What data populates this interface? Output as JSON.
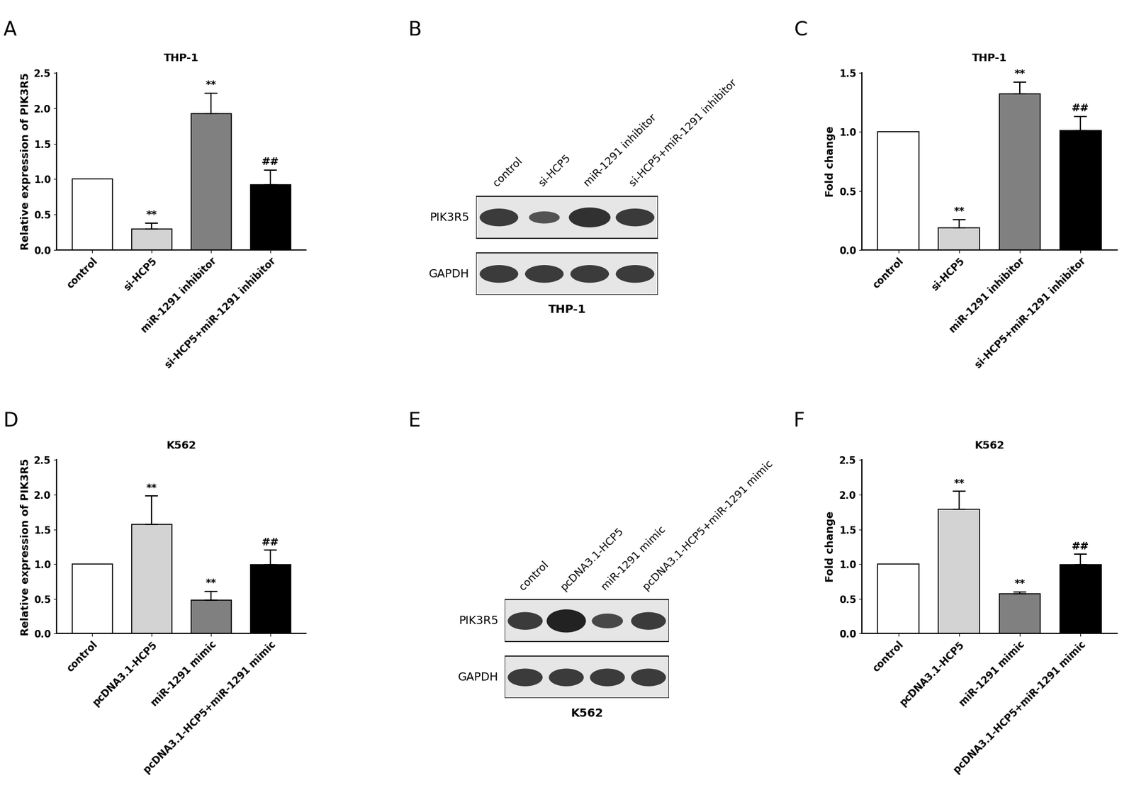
{
  "chart_data": [
    {
      "panel": "A",
      "type": "bar",
      "title": "THP-1",
      "y_label": "Relative expression of PIK3R5",
      "categories": [
        "control",
        "si-HCP5",
        "miR-1291 inhibitor",
        "si-HCP5+miR-1291 inhibitor"
      ],
      "values": [
        1.0,
        0.3,
        1.92,
        0.92
      ],
      "errors": [
        0.0,
        0.08,
        0.29,
        0.21
      ],
      "significance": [
        null,
        "**",
        "**",
        "##"
      ],
      "colors": [
        "#ffffff",
        "#d3d3d3",
        "#808080",
        "#000000"
      ],
      "ylim": [
        0.0,
        2.5
      ],
      "yticks": [
        0.0,
        0.5,
        1.0,
        1.5,
        2.0,
        2.5
      ],
      "grid": false
    },
    {
      "panel": "B",
      "type": "western_blot",
      "caption": "THP-1",
      "lanes": [
        "control",
        "si-HCP5",
        "miR-1291 inhibitor",
        "si-HCP5+miR-1291 inhibitor"
      ],
      "rows": [
        "PIK3R5",
        "GAPDH"
      ]
    },
    {
      "panel": "C",
      "type": "bar",
      "title": "THP-1",
      "y_label": "Fold change",
      "categories": [
        "control",
        "si-HCP5",
        "miR-1291 inhibitor",
        "si-HCP5+miR-1291 inhibitor"
      ],
      "values": [
        1.0,
        0.19,
        1.32,
        1.01
      ],
      "errors": [
        0.0,
        0.07,
        0.1,
        0.12
      ],
      "significance": [
        null,
        "**",
        "**",
        "##"
      ],
      "colors": [
        "#ffffff",
        "#d3d3d3",
        "#808080",
        "#000000"
      ],
      "ylim": [
        0.0,
        1.5
      ],
      "yticks": [
        0.0,
        0.5,
        1.0,
        1.5
      ],
      "grid": false
    },
    {
      "panel": "D",
      "type": "bar",
      "title": "K562",
      "y_label": "Relative expression of PIK3R5",
      "categories": [
        "control",
        "pcDNA3.1-HCP5",
        "miR-1291 mimic",
        "pcDNA3.1-HCP5+miR-1291 mimic"
      ],
      "values": [
        1.0,
        1.57,
        0.48,
        0.99
      ],
      "errors": [
        0.0,
        0.41,
        0.13,
        0.21
      ],
      "significance": [
        null,
        "**",
        "**",
        "##"
      ],
      "colors": [
        "#ffffff",
        "#d3d3d3",
        "#808080",
        "#000000"
      ],
      "ylim": [
        0.0,
        2.5
      ],
      "yticks": [
        0.0,
        0.5,
        1.0,
        1.5,
        2.0,
        2.5
      ],
      "grid": false
    },
    {
      "panel": "E",
      "type": "western_blot",
      "caption": "K562",
      "lanes": [
        "control",
        "pcDNA3.1-HCP5",
        "miR-1291 mimic",
        "pcDNA3.1-HCP5+miR-1291 mimic"
      ],
      "rows": [
        "PIK3R5",
        "GAPDH"
      ]
    },
    {
      "panel": "F",
      "type": "bar",
      "title": "K562",
      "y_label": "Fold change",
      "categories": [
        "control",
        "pcDNA3.1-HCP5",
        "miR-1291 mimic",
        "pcDNA3.1-HCP5+miR-1291 mimic"
      ],
      "values": [
        1.0,
        1.79,
        0.57,
        0.99
      ],
      "errors": [
        0.0,
        0.26,
        0.03,
        0.15
      ],
      "significance": [
        null,
        "**",
        "**",
        "##"
      ],
      "colors": [
        "#ffffff",
        "#d3d3d3",
        "#808080",
        "#000000"
      ],
      "ylim": [
        0.0,
        2.5
      ],
      "yticks": [
        0.0,
        0.5,
        1.0,
        1.5,
        2.0,
        2.5
      ],
      "grid": false
    }
  ]
}
